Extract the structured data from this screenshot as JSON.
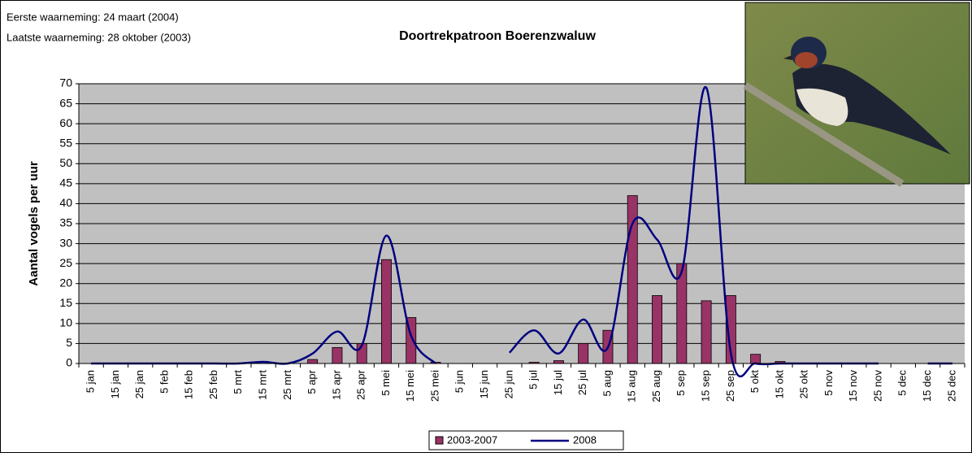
{
  "chart_data": {
    "type": "bar",
    "title": "Doortrekpatroon Boerenzwaluw",
    "annotations": [
      "Eerste waarneming: 24 maart (2004)",
      "Laatste waarneming: 28 oktober (2003)"
    ],
    "y_label": "Aantal vogels per uur",
    "categories": [
      "5 jan",
      "15 jan",
      "25 jan",
      "5 feb",
      "15 feb",
      "25 feb",
      "5 mrt",
      "15 mrt",
      "25 mrt",
      "5 apr",
      "15 apr",
      "25 apr",
      "5 mei",
      "15 mei",
      "25 mei",
      "5 jun",
      "15 jun",
      "25 jun",
      "5 jul",
      "15 jul",
      "25 jul",
      "5 aug",
      "15 aug",
      "25 aug",
      "5 sep",
      "15 sep",
      "25 sep",
      "5 okt",
      "15 okt",
      "25 okt",
      "5 nov",
      "15 nov",
      "25 nov",
      "5 dec",
      "15 dec",
      "25 dec"
    ],
    "series": [
      {
        "name": "2003-2007",
        "type": "bar",
        "color": "#993366",
        "values": [
          0,
          0,
          0,
          0,
          0,
          0,
          0,
          0,
          0,
          1,
          4,
          5,
          26,
          11.5,
          0.3,
          0,
          0,
          0,
          0.3,
          0.7,
          5,
          8.3,
          42,
          17,
          25,
          15.7,
          17,
          2.3,
          0.5,
          0,
          0,
          0,
          0,
          0,
          0,
          0
        ]
      },
      {
        "name": "2008",
        "type": "line",
        "color": "#000080",
        "values": [
          0,
          0,
          0,
          0,
          0,
          0,
          0,
          0.4,
          0,
          2.5,
          8,
          4.5,
          32,
          7,
          0,
          null,
          null,
          2.7,
          8.3,
          2.5,
          11,
          4,
          35,
          31,
          23,
          69,
          2.5,
          0,
          0,
          0,
          0,
          0,
          0,
          null,
          0,
          0
        ]
      }
    ],
    "ylim": [
      0,
      70
    ],
    "yticks": [
      0,
      5,
      10,
      15,
      20,
      25,
      30,
      35,
      40,
      45,
      50,
      55,
      60,
      65,
      70
    ],
    "grid": true,
    "legend": "bottom"
  }
}
